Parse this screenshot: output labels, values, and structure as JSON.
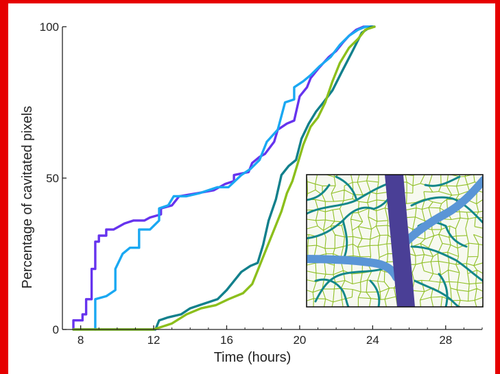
{
  "chart_data": {
    "type": "line",
    "title": "",
    "xlabel": "Time (hours)",
    "ylabel": "Percentage of cavitated pixels",
    "xlim": [
      7,
      30
    ],
    "ylim": [
      0,
      100
    ],
    "xticks": [
      8,
      12,
      16,
      20,
      24,
      28
    ],
    "yticks": [
      0,
      50,
      100
    ],
    "grid": false,
    "legend": "none",
    "series": [
      {
        "color": "#6633ee",
        "points": [
          [
            7.6,
            0
          ],
          [
            7.6,
            3
          ],
          [
            8.1,
            3
          ],
          [
            8.1,
            5
          ],
          [
            8.3,
            5
          ],
          [
            8.3,
            10
          ],
          [
            8.6,
            10
          ],
          [
            8.6,
            20
          ],
          [
            8.8,
            20
          ],
          [
            8.8,
            29
          ],
          [
            9.0,
            29
          ],
          [
            9.0,
            31
          ],
          [
            9.4,
            31
          ],
          [
            9.4,
            33
          ],
          [
            9.8,
            33
          ],
          [
            10.4,
            35
          ],
          [
            10.9,
            36
          ],
          [
            11.5,
            36
          ],
          [
            11.8,
            37
          ],
          [
            12.4,
            38
          ],
          [
            12.4,
            40
          ],
          [
            13.0,
            41
          ],
          [
            13.4,
            44
          ],
          [
            14.4,
            45
          ],
          [
            15.3,
            46
          ],
          [
            15.9,
            48
          ],
          [
            16.4,
            49
          ],
          [
            16.4,
            51
          ],
          [
            17.2,
            52
          ],
          [
            17.4,
            55
          ],
          [
            17.8,
            57
          ],
          [
            18.1,
            58
          ],
          [
            18.6,
            62
          ],
          [
            18.8,
            66
          ],
          [
            19.3,
            68
          ],
          [
            19.7,
            69
          ],
          [
            20.0,
            77
          ],
          [
            20.4,
            80
          ],
          [
            20.6,
            83
          ],
          [
            21.0,
            86
          ],
          [
            21.3,
            88
          ],
          [
            21.6,
            90
          ],
          [
            22.0,
            92
          ],
          [
            22.4,
            95
          ],
          [
            22.7,
            97
          ],
          [
            23.1,
            99
          ],
          [
            23.5,
            100
          ],
          [
            24.0,
            100
          ]
        ]
      },
      {
        "color": "#1aa8f2",
        "points": [
          [
            8.8,
            0
          ],
          [
            8.8,
            10
          ],
          [
            9.4,
            11
          ],
          [
            9.9,
            13
          ],
          [
            9.9,
            20
          ],
          [
            10.3,
            25
          ],
          [
            10.7,
            27
          ],
          [
            11.2,
            27
          ],
          [
            11.2,
            33
          ],
          [
            11.8,
            33
          ],
          [
            12.3,
            36
          ],
          [
            12.3,
            40
          ],
          [
            12.8,
            41
          ],
          [
            13.1,
            44
          ],
          [
            13.8,
            44
          ],
          [
            14.5,
            45
          ],
          [
            15.5,
            47
          ],
          [
            16.1,
            47
          ],
          [
            16.8,
            51
          ],
          [
            17.3,
            53
          ],
          [
            17.8,
            56
          ],
          [
            18.2,
            62
          ],
          [
            18.5,
            64
          ],
          [
            18.8,
            66
          ],
          [
            19.2,
            75
          ],
          [
            19.7,
            76
          ],
          [
            19.7,
            80
          ],
          [
            20.2,
            82
          ],
          [
            20.6,
            84
          ],
          [
            21.1,
            87
          ],
          [
            21.7,
            90
          ],
          [
            22.2,
            94
          ],
          [
            22.7,
            97
          ],
          [
            23.2,
            99
          ],
          [
            23.6,
            100
          ],
          [
            24.0,
            100
          ]
        ]
      },
      {
        "color": "#12808c",
        "points": [
          [
            7.6,
            0
          ],
          [
            12.1,
            0
          ],
          [
            12.3,
            3
          ],
          [
            12.8,
            4
          ],
          [
            13.5,
            5
          ],
          [
            14.0,
            7
          ],
          [
            14.5,
            8
          ],
          [
            15.5,
            10
          ],
          [
            16.0,
            13
          ],
          [
            16.4,
            16
          ],
          [
            16.8,
            19
          ],
          [
            17.3,
            21
          ],
          [
            17.7,
            22
          ],
          [
            18.0,
            28
          ],
          [
            18.3,
            36
          ],
          [
            18.7,
            43
          ],
          [
            19.0,
            51
          ],
          [
            19.4,
            54
          ],
          [
            19.8,
            56
          ],
          [
            20.1,
            63
          ],
          [
            20.5,
            68
          ],
          [
            20.9,
            72
          ],
          [
            21.3,
            75
          ],
          [
            21.8,
            79
          ],
          [
            22.3,
            85
          ],
          [
            22.9,
            92
          ],
          [
            23.4,
            98
          ],
          [
            23.9,
            100
          ],
          [
            24.1,
            100
          ]
        ]
      },
      {
        "color": "#8cbf1c",
        "points": [
          [
            7.6,
            0
          ],
          [
            12.0,
            0
          ],
          [
            13.0,
            2
          ],
          [
            13.8,
            5
          ],
          [
            14.6,
            7
          ],
          [
            15.4,
            8
          ],
          [
            16.1,
            10
          ],
          [
            16.9,
            12
          ],
          [
            17.4,
            15
          ],
          [
            17.8,
            21
          ],
          [
            18.2,
            27
          ],
          [
            18.6,
            33
          ],
          [
            19.0,
            39
          ],
          [
            19.3,
            45
          ],
          [
            19.6,
            49
          ],
          [
            19.9,
            55
          ],
          [
            20.2,
            61
          ],
          [
            20.6,
            67
          ],
          [
            21.0,
            70
          ],
          [
            21.4,
            75
          ],
          [
            21.8,
            82
          ],
          [
            22.2,
            88
          ],
          [
            22.7,
            93
          ],
          [
            23.2,
            96
          ],
          [
            23.6,
            99
          ],
          [
            24.1,
            100
          ]
        ]
      }
    ],
    "inset": {
      "description_icon": "leaf-venation-icon",
      "colors": {
        "background": "#f7f9f0",
        "fine_veins": "#8fbf24",
        "secondary_veins": "#13878a",
        "midrib": "#4a3f96",
        "lateral_veins": "#5a95d6"
      }
    }
  }
}
